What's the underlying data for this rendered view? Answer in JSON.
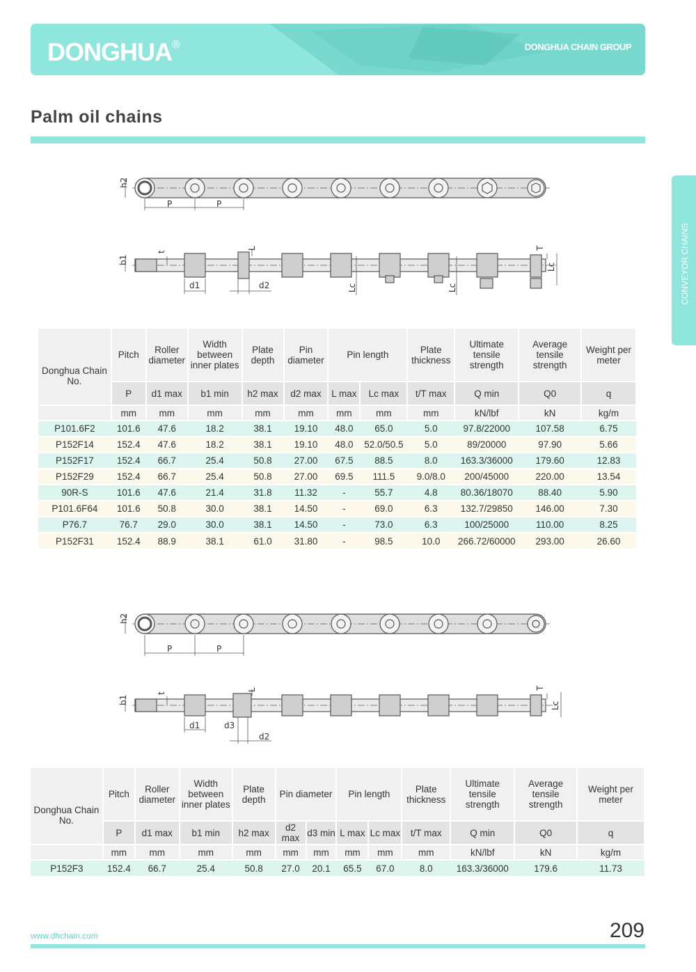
{
  "brand": {
    "logo": "DONGHUA",
    "reg": "®",
    "group": "DONGHUA CHAIN GROUP"
  },
  "page_title": "Palm oil chains",
  "side_tab": "CONVEYOR CHAINS",
  "diagram_labels": {
    "h2": "h2",
    "P": "P",
    "b1": "b1",
    "t": "t",
    "L": "L",
    "d1": "d1",
    "d2": "d2",
    "d3": "d3",
    "Lc": "Lc",
    "T": "T"
  },
  "table1": {
    "headers": [
      "Donghua Chain No.",
      "Pitch",
      "Roller diameter",
      "Width between inner plates",
      "Plate depth",
      "Pin diameter",
      "Pin length",
      "Plate thickness",
      "Ultimate tensile strength",
      "Average tensile strength",
      "Weight per meter"
    ],
    "symbols": [
      "P",
      "d1 max",
      "b1 min",
      "h2 max",
      "d2 max",
      "L max",
      "Lc max",
      "t/T max",
      "Q min",
      "Q0",
      "q"
    ],
    "units": [
      "mm",
      "mm",
      "mm",
      "mm",
      "mm",
      "mm",
      "mm",
      "mm",
      "kN/lbf",
      "kN",
      "kg/m"
    ],
    "rows": [
      [
        "P101.6F2",
        "101.6",
        "47.6",
        "18.2",
        "38.1",
        "19.10",
        "48.0",
        "65.0",
        "5.0",
        "97.8/22000",
        "107.58",
        "6.75"
      ],
      [
        "P152F14",
        "152.4",
        "47.6",
        "18.2",
        "38.1",
        "19.10",
        "48.0",
        "52.0/50.5",
        "5.0",
        "89/20000",
        "97.90",
        "5.66"
      ],
      [
        "P152F17",
        "152.4",
        "66.7",
        "25.4",
        "50.8",
        "27.00",
        "67.5",
        "88.5",
        "8.0",
        "163.3/36000",
        "179.60",
        "12.83"
      ],
      [
        "P152F29",
        "152.4",
        "66.7",
        "25.4",
        "50.8",
        "27.00",
        "69.5",
        "111.5",
        "9.0/8.0",
        "200/45000",
        "220.00",
        "13.54"
      ],
      [
        "90R-S",
        "101.6",
        "47.6",
        "21.4",
        "31.8",
        "11.32",
        "-",
        "55.7",
        "4.8",
        "80.36/18070",
        "88.40",
        "5.90"
      ],
      [
        "P101.6F64",
        "101.6",
        "50.8",
        "30.0",
        "38.1",
        "14.50",
        "-",
        "69.0",
        "6.3",
        "132.7/29850",
        "146.00",
        "7.30"
      ],
      [
        "P76.7",
        "76.7",
        "29.0",
        "30.0",
        "38.1",
        "14.50",
        "-",
        "73.0",
        "6.3",
        "100/25000",
        "110.00",
        "8.25"
      ],
      [
        "P152F31",
        "152.4",
        "88.9",
        "38.1",
        "61.0",
        "31.80",
        "-",
        "98.5",
        "10.0",
        "266.72/60000",
        "293.00",
        "26.60"
      ]
    ]
  },
  "table2": {
    "headers": [
      "Donghua Chain No.",
      "Pitch",
      "Roller diameter",
      "Width between inner plates",
      "Plate depth",
      "Pin diameter",
      "Pin length",
      "Plate thickness",
      "Ultimate tensile strength",
      "Average tensile strength",
      "Weight per meter"
    ],
    "symbols": [
      "P",
      "d1 max",
      "b1 min",
      "h2 max",
      "d2 max",
      "d3 min",
      "L max",
      "Lc max",
      "t/T max",
      "Q min",
      "Q0",
      "q"
    ],
    "units": [
      "mm",
      "mm",
      "mm",
      "mm",
      "mm",
      "mm",
      "mm",
      "mm",
      "mm",
      "kN/lbf",
      "kN",
      "kg/m"
    ],
    "rows": [
      [
        "P152F3",
        "152.4",
        "66.7",
        "25.4",
        "50.8",
        "27.0",
        "20.1",
        "65.5",
        "67.0",
        "8.0",
        "163.3/36000",
        "179.6",
        "11.73"
      ]
    ]
  },
  "footer": {
    "url": "www.dhchain.com",
    "page": "209"
  }
}
